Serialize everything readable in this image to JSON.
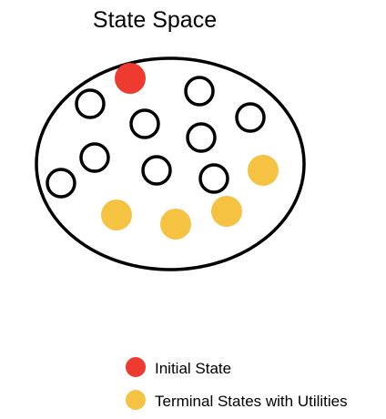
{
  "diagram": {
    "title": "State Space",
    "colors": {
      "outline": "#000000",
      "initial": "#ee3a2f",
      "terminal": "#f5c242",
      "empty": "#ffffff"
    },
    "states": [
      {
        "kind": "initial"
      },
      {
        "kind": "regular"
      },
      {
        "kind": "regular"
      },
      {
        "kind": "regular"
      },
      {
        "kind": "regular"
      },
      {
        "kind": "regular"
      },
      {
        "kind": "regular"
      },
      {
        "kind": "regular"
      },
      {
        "kind": "regular"
      },
      {
        "kind": "regular"
      },
      {
        "kind": "terminal"
      },
      {
        "kind": "terminal"
      },
      {
        "kind": "terminal"
      },
      {
        "kind": "terminal"
      }
    ],
    "legend": {
      "initial_label": "Initial State",
      "terminal_label": "Terminal States with Utilities"
    }
  }
}
